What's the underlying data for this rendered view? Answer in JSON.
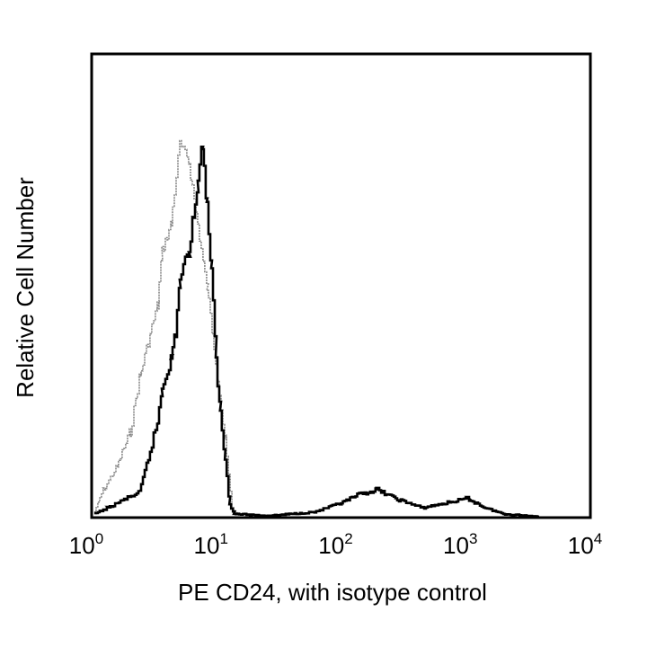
{
  "chart_data": {
    "type": "line",
    "title": "",
    "xlabel": "PE CD24, with isotype control",
    "ylabel": "Relative Cell Number",
    "xscale": "log",
    "xlim": [
      1,
      10000
    ],
    "ylim": [
      0,
      100
    ],
    "x_ticks": [
      {
        "base": "10",
        "exp": "0"
      },
      {
        "base": "10",
        "exp": "1"
      },
      {
        "base": "10",
        "exp": "2"
      },
      {
        "base": "10",
        "exp": "3"
      },
      {
        "base": "10",
        "exp": "4"
      }
    ],
    "grid": false,
    "series": [
      {
        "role": "stained",
        "color": "#000000",
        "x": [
          1.05,
          1.35,
          1.88,
          2.41,
          2.84,
          3.36,
          3.65,
          4.31,
          4.68,
          5.08,
          6.0,
          6.52,
          7.08,
          7.69,
          8.37,
          9.09,
          9.88,
          10.7,
          11.7,
          12.7,
          13.8,
          26.7,
          61.2,
          100,
          140,
          196,
          273,
          449,
          1030,
          1435,
          2000,
          3880
        ],
        "y": [
          0.8,
          2.1,
          4.1,
          5.4,
          12.8,
          20.5,
          28.3,
          34.1,
          39.9,
          51.6,
          57.4,
          65.1,
          72.9,
          80.6,
          67.0,
          53.5,
          34.1,
          22.5,
          12.8,
          3.1,
          0.8,
          0.4,
          1.2,
          3.1,
          5.0,
          6.0,
          4.1,
          2.1,
          4.1,
          2.1,
          0.8,
          0.2
        ]
      },
      {
        "role": "isotype control",
        "color": "#888888",
        "x": [
          1.05,
          1.24,
          1.59,
          2.04,
          2.41,
          2.84,
          3.36,
          3.65,
          4.31,
          5.08,
          6.0,
          7.08,
          8.37,
          9.88,
          11.7,
          13.3,
          15.1
        ],
        "y": [
          1.2,
          6.0,
          10.9,
          18.6,
          30.2,
          38.0,
          45.7,
          57.4,
          63.2,
          80.6,
          76.7,
          63.2,
          49.6,
          34.1,
          16.7,
          2.1,
          0.2
        ]
      }
    ]
  }
}
